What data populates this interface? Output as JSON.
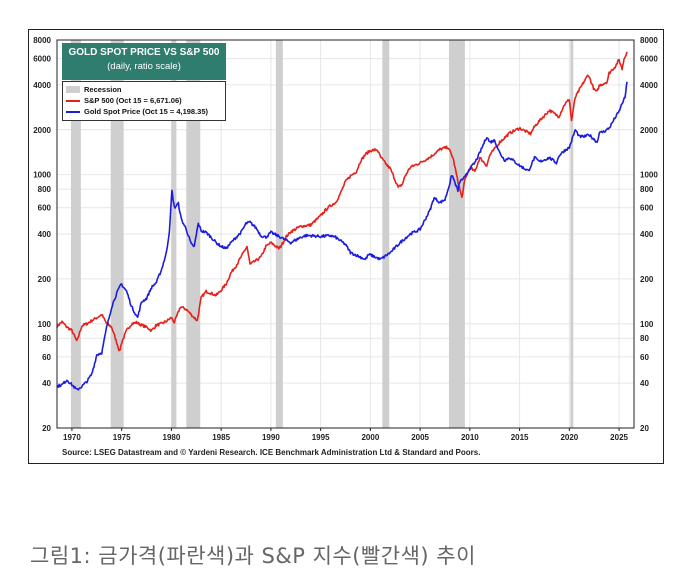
{
  "colors": {
    "sp500": "#e8201a",
    "gold": "#1c1ce0",
    "recession": "#cfcfcf",
    "title_bg": "#2e7d6e"
  },
  "chart_data": {
    "type": "line",
    "title": "GOLD SPOT PRICE VS S&P 500",
    "subtitle": "(daily, ratio scale)",
    "scale": "log",
    "ylim": [
      20,
      8000
    ],
    "xlim": [
      1968.5,
      2026.5
    ],
    "y_ticks": [
      "8000",
      "6000",
      "4000",
      "2000",
      "1000",
      "800",
      "600",
      "400",
      "200",
      "100",
      "80",
      "60",
      "40",
      "20"
    ],
    "y_tick_values": [
      8000,
      6000,
      4000,
      2000,
      1000,
      800,
      600,
      400,
      200,
      100,
      80,
      60,
      40,
      20
    ],
    "x_ticks": [
      "1970",
      "1975",
      "1980",
      "1985",
      "1990",
      "1995",
      "2000",
      "2005",
      "2010",
      "2015",
      "2020",
      "2025"
    ],
    "x_tick_values": [
      1970,
      1975,
      1980,
      1985,
      1990,
      1995,
      2000,
      2005,
      2010,
      2015,
      2020,
      2025
    ],
    "legend": [
      {
        "kind": "band",
        "label": "Recession"
      },
      {
        "kind": "line",
        "label": "S&P 500 (Oct 15 = 6,671.06)",
        "series": "sp500"
      },
      {
        "kind": "line",
        "label": "Gold Spot Price (Oct 15 = 4,198.35)",
        "series": "gold"
      }
    ],
    "recessions": [
      [
        1969.9,
        1970.9
      ],
      [
        1973.9,
        1975.2
      ],
      [
        1980.0,
        1980.5
      ],
      [
        1981.5,
        1982.9
      ],
      [
        1990.5,
        1991.2
      ],
      [
        2001.2,
        2001.9
      ],
      [
        2007.9,
        2009.5
      ],
      [
        2020.1,
        2020.4
      ]
    ],
    "series": [
      {
        "name": "S&P 500",
        "key": "sp500",
        "x": [
          1968.5,
          1969.0,
          1969.5,
          1970.0,
          1970.5,
          1971.0,
          1971.5,
          1972.0,
          1972.5,
          1973.0,
          1973.5,
          1974.0,
          1974.5,
          1974.8,
          1975.0,
          1975.5,
          1976.0,
          1976.5,
          1977.0,
          1977.5,
          1978.0,
          1978.5,
          1979.0,
          1979.5,
          1980.0,
          1980.3,
          1980.9,
          1981.5,
          1982.0,
          1982.6,
          1983.0,
          1983.5,
          1984.0,
          1984.5,
          1985.0,
          1985.5,
          1986.0,
          1986.5,
          1987.0,
          1987.6,
          1987.9,
          1988.5,
          1989.0,
          1989.5,
          1990.0,
          1990.8,
          1991.0,
          1991.5,
          1992.0,
          1993.0,
          1994.0,
          1995.0,
          1995.5,
          1996.0,
          1996.5,
          1997.0,
          1997.5,
          1998.0,
          1998.6,
          1999.0,
          1999.5,
          2000.0,
          2000.7,
          2001.0,
          2001.7,
          2002.0,
          2002.8,
          2003.2,
          2003.5,
          2004.0,
          2005.0,
          2006.0,
          2007.0,
          2007.8,
          2008.3,
          2008.8,
          2009.2,
          2009.5,
          2010.0,
          2010.5,
          2011.0,
          2011.7,
          2012.0,
          2013.0,
          2014.0,
          2015.0,
          2016.1,
          2016.5,
          2017.0,
          2018.0,
          2018.95,
          2019.5,
          2020.0,
          2020.22,
          2020.6,
          2021.0,
          2021.9,
          2022.5,
          2022.8,
          2023.0,
          2023.8,
          2024.0,
          2024.6,
          2025.0,
          2025.3,
          2025.5,
          2025.8
        ],
        "values": [
          96,
          103,
          95,
          90,
          76,
          97,
          100,
          105,
          110,
          115,
          100,
          95,
          75,
          65,
          75,
          90,
          100,
          102,
          98,
          95,
          90,
          98,
          100,
          104,
          110,
          102,
          130,
          125,
          115,
          105,
          150,
          165,
          160,
          155,
          168,
          185,
          220,
          245,
          280,
          330,
          250,
          265,
          280,
          330,
          350,
          320,
          330,
          380,
          415,
          450,
          460,
          530,
          580,
          620,
          650,
          750,
          900,
          980,
          1050,
          1230,
          1370,
          1450,
          1470,
          1320,
          1150,
          1100,
          820,
          860,
          980,
          1120,
          1200,
          1310,
          1480,
          1530,
          1300,
          900,
          700,
          920,
          1120,
          1050,
          1300,
          1150,
          1350,
          1650,
          1900,
          2050,
          1880,
          2100,
          2300,
          2700,
          2450,
          2950,
          3200,
          2300,
          3300,
          3700,
          4700,
          3700,
          3600,
          3950,
          4200,
          4800,
          5300,
          5900,
          5100,
          6000,
          6671
        ]
      },
      {
        "name": "Gold Spot Price",
        "key": "gold",
        "x": [
          1968.5,
          1969.0,
          1969.5,
          1970.0,
          1970.5,
          1971.0,
          1971.5,
          1972.0,
          1972.5,
          1973.0,
          1973.5,
          1974.0,
          1974.5,
          1974.95,
          1975.5,
          1976.0,
          1976.6,
          1977.0,
          1977.5,
          1978.0,
          1978.5,
          1979.0,
          1979.5,
          1979.8,
          1980.05,
          1980.3,
          1980.7,
          1981.0,
          1981.5,
          1982.0,
          1982.3,
          1982.7,
          1983.0,
          1983.5,
          1984.0,
          1984.5,
          1985.0,
          1985.5,
          1986.0,
          1986.5,
          1987.0,
          1987.5,
          1987.9,
          1988.5,
          1989.0,
          1989.5,
          1990.0,
          1991.0,
          1992.0,
          1993.0,
          1993.5,
          1994.0,
          1995.0,
          1996.0,
          1996.5,
          1997.0,
          1997.5,
          1998.0,
          1999.0,
          1999.5,
          1999.8,
          2000.0,
          2001.0,
          2002.0,
          2003.0,
          2004.0,
          2005.0,
          2006.0,
          2006.4,
          2007.0,
          2007.5,
          2008.0,
          2008.2,
          2008.8,
          2009.0,
          2009.5,
          2010.0,
          2010.5,
          2011.0,
          2011.7,
          2012.0,
          2012.5,
          2013.0,
          2013.5,
          2014.0,
          2015.0,
          2015.9,
          2016.5,
          2017.0,
          2018.0,
          2018.7,
          2019.0,
          2019.5,
          2020.0,
          2020.6,
          2021.0,
          2021.5,
          2022.0,
          2022.8,
          2023.0,
          2023.5,
          2024.0,
          2024.5,
          2025.0,
          2025.3,
          2025.6,
          2025.8
        ],
        "values": [
          38,
          39,
          42,
          39,
          36,
          38,
          41,
          46,
          62,
          64,
          95,
          130,
          160,
          185,
          165,
          130,
          110,
          140,
          148,
          175,
          190,
          230,
          300,
          420,
          780,
          600,
          640,
          500,
          430,
          340,
          330,
          470,
          420,
          410,
          380,
          350,
          330,
          320,
          350,
          380,
          410,
          470,
          480,
          440,
          390,
          380,
          410,
          380,
          350,
          380,
          390,
          390,
          385,
          390,
          380,
          360,
          340,
          300,
          280,
          270,
          290,
          290,
          270,
          300,
          350,
          400,
          430,
          580,
          700,
          650,
          680,
          880,
          1000,
          780,
          900,
          960,
          1100,
          1200,
          1400,
          1800,
          1650,
          1700,
          1400,
          1250,
          1300,
          1150,
          1060,
          1300,
          1220,
          1300,
          1200,
          1350,
          1450,
          1520,
          2000,
          1800,
          1800,
          1850,
          1650,
          1900,
          1950,
          2050,
          2350,
          2650,
          3000,
          3300,
          4198
        ]
      }
    ]
  },
  "source": "Source: LSEG Datastream and © Yardeni Research. ICE Benchmark Administration Ltd & Standard and Poors.",
  "caption": "그림1: 금가격(파란색)과 S&P 지수(빨간색) 추이"
}
